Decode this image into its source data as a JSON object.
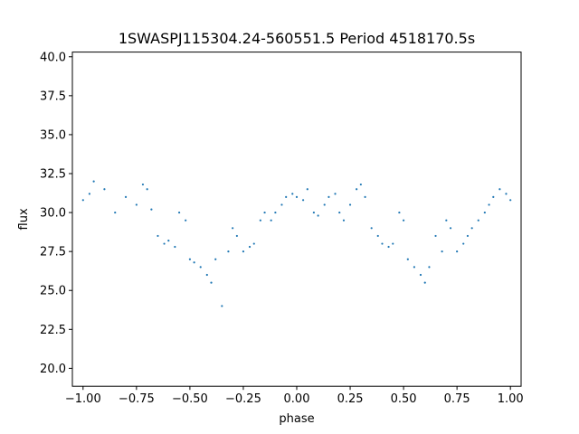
{
  "chart_data": {
    "type": "scatter",
    "title": "1SWASPJ115304.24-560551.5 Period 4518170.5s",
    "xlabel": "phase",
    "ylabel": "flux",
    "xlim": [
      -1.05,
      1.05
    ],
    "ylim": [
      18.85,
      40.3
    ],
    "xticks": [
      -1.0,
      -0.75,
      -0.5,
      -0.25,
      0.0,
      0.25,
      0.5,
      0.75,
      1.0
    ],
    "xtick_labels": [
      "−1.00",
      "−0.75",
      "−0.50",
      "−0.25",
      "0.00",
      "0.25",
      "0.50",
      "0.75",
      "1.00"
    ],
    "yticks": [
      20.0,
      22.5,
      25.0,
      27.5,
      30.0,
      32.5,
      35.0,
      37.5,
      40.0
    ],
    "ytick_labels": [
      "20.0",
      "22.5",
      "25.0",
      "27.5",
      "30.0",
      "32.5",
      "35.0",
      "37.5",
      "40.0"
    ],
    "grid": false,
    "legend": "none",
    "marker_color": "#1f77b4",
    "series": [
      {
        "x": [
          -1.0,
          -0.97,
          -0.95,
          -0.9,
          -0.85,
          -0.8,
          -0.75,
          -0.72,
          -0.7,
          -0.68,
          -0.65,
          -0.62,
          -0.6,
          -0.57,
          -0.55,
          -0.52,
          -0.5,
          -0.48,
          -0.45,
          -0.42,
          -0.4,
          -0.38,
          -0.35,
          -0.32,
          -0.3,
          -0.28,
          -0.25,
          -0.22,
          -0.2,
          -0.17,
          -0.15,
          -0.12,
          -0.1,
          -0.07,
          -0.05,
          -0.02,
          0.0,
          0.03,
          0.05,
          0.08,
          0.1,
          0.13,
          0.15,
          0.18,
          0.2,
          0.22,
          0.25,
          0.28,
          0.3,
          0.32,
          0.35,
          0.38,
          0.4,
          0.43,
          0.45,
          0.48,
          0.5,
          0.52,
          0.55,
          0.58,
          0.6,
          0.62,
          0.65,
          0.68,
          0.7,
          0.72,
          0.75,
          0.78,
          0.8,
          0.82,
          0.85,
          0.88,
          0.9,
          0.92,
          0.95,
          0.98,
          1.0
        ],
        "y": [
          30.8,
          31.2,
          32.0,
          31.5,
          30.0,
          31.0,
          30.5,
          31.8,
          31.5,
          30.2,
          28.5,
          28.0,
          28.2,
          27.8,
          30.0,
          29.5,
          27.0,
          26.8,
          26.5,
          26.0,
          25.5,
          27.0,
          24.0,
          27.5,
          29.0,
          28.5,
          27.5,
          27.8,
          28.0,
          29.5,
          30.0,
          29.5,
          30.0,
          30.5,
          31.0,
          31.2,
          31.0,
          30.8,
          31.5,
          30.0,
          29.8,
          30.5,
          31.0,
          31.2,
          30.0,
          29.5,
          30.5,
          31.5,
          31.8,
          31.0,
          29.0,
          28.5,
          28.0,
          27.8,
          28.0,
          30.0,
          29.5,
          27.0,
          26.5,
          26.0,
          25.5,
          26.5,
          28.5,
          27.5,
          29.5,
          29.0,
          27.5,
          28.0,
          28.5,
          29.0,
          29.5,
          30.0,
          30.5,
          31.0,
          31.5,
          31.2,
          30.8
        ]
      }
    ]
  }
}
